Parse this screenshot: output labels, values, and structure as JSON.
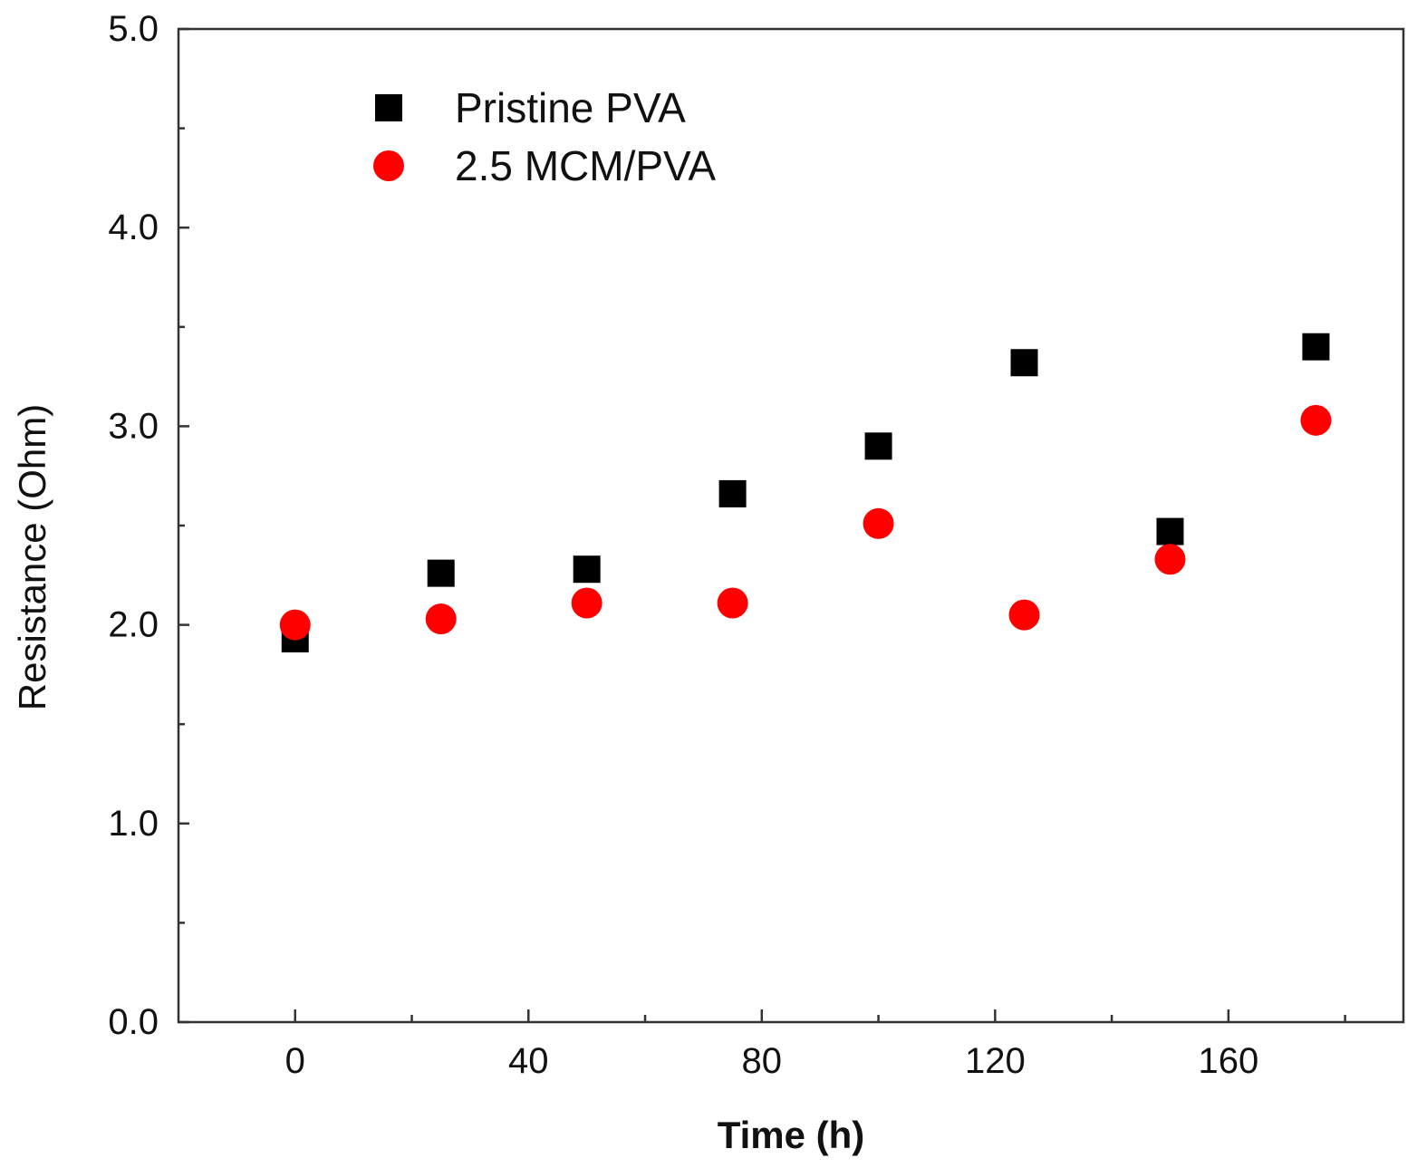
{
  "chart_data": {
    "type": "scatter",
    "title": "",
    "xlabel": "Time (h)",
    "ylabel": "Resistance (Ohm)",
    "xlim": [
      -20,
      190
    ],
    "ylim": [
      0,
      5
    ],
    "x_ticks": [
      0,
      40,
      80,
      120,
      160
    ],
    "x_ticks_minor": [
      20,
      60,
      100,
      140,
      180
    ],
    "x_tick_labels": [
      "0",
      "40",
      "80",
      "120",
      "160"
    ],
    "y_ticks": [
      0,
      1,
      2,
      3,
      4,
      5
    ],
    "y_ticks_minor": [
      0.5,
      1.5,
      2.5,
      3.5,
      4.5
    ],
    "y_tick_labels": [
      "0.0",
      "1.0",
      "2.0",
      "3.0",
      "4.0",
      "5.0"
    ],
    "grid": false,
    "legend_position": "top-left",
    "series": [
      {
        "name": "Pristine PVA",
        "marker": "square",
        "color": "#000000",
        "x": [
          0,
          25,
          50,
          75,
          100,
          125,
          150,
          175
        ],
        "y": [
          1.93,
          2.26,
          2.28,
          2.66,
          2.9,
          3.32,
          2.47,
          3.4
        ]
      },
      {
        "name": "2.5 MCM/PVA",
        "marker": "circle",
        "color": "#ff0000",
        "x": [
          0,
          25,
          50,
          75,
          100,
          125,
          150,
          175
        ],
        "y": [
          2.0,
          2.03,
          2.11,
          2.11,
          2.51,
          2.05,
          2.33,
          3.03
        ]
      }
    ]
  }
}
